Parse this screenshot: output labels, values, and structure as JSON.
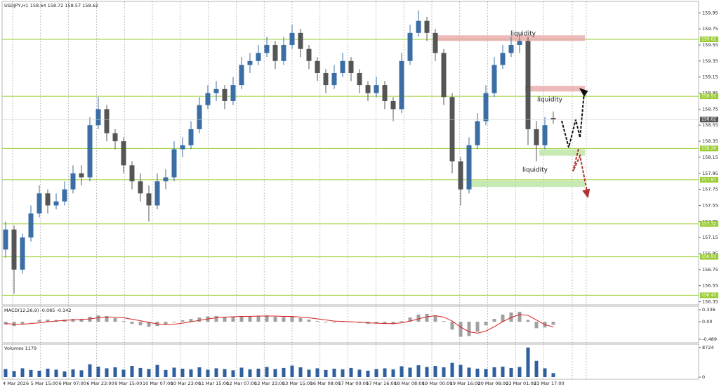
{
  "chart_data": {
    "type": "candlestick",
    "symbol": "USDJPY,H1",
    "x_labels": [
      "4 Mar 2026",
      "5 Mar 15:00",
      "6 Mar 07:00",
      "6 Mar 23:00",
      "9 Mar 15:00",
      "10 Mar 07:00",
      "10 Mar 23:00",
      "11 Mar 15:00",
      "12 Mar 07:00",
      "12 Mar 23:00",
      "13 Mar 15:00",
      "16 Mar 08:00",
      "17 Mar 00:00",
      "17 Mar 16:00",
      "18 Mar 08:00",
      "19 Mar 00:00",
      "19 Mar 16:00",
      "20 Mar 08:00",
      "23 Mar 01:00",
      "23 Mar 17:00"
    ],
    "open": [
      157.0,
      157.25,
      156.75,
      157.15,
      157.45,
      157.7,
      157.55,
      157.6,
      157.75,
      157.95,
      157.9,
      158.55,
      158.75,
      158.45,
      158.35,
      158.05,
      157.85,
      157.7,
      157.55,
      157.85,
      157.9,
      158.25,
      158.3,
      158.5,
      158.8,
      158.95,
      159.0,
      158.85,
      159.05,
      159.3,
      159.35,
      159.45,
      159.55,
      159.35,
      159.55,
      159.7,
      159.5,
      159.35,
      159.2,
      159.05,
      159.2,
      159.35,
      159.2,
      159.05,
      158.95,
      159.05,
      158.85,
      158.75,
      159.35,
      159.7,
      159.85,
      159.7,
      159.45,
      158.9,
      158.1,
      157.75,
      158.3,
      158.6,
      158.95,
      159.3,
      159.45,
      159.55,
      159.6,
      158.5,
      158.3,
      158.64
    ],
    "high": [
      157.35,
      157.3,
      157.2,
      157.55,
      157.8,
      157.75,
      157.7,
      157.85,
      158.05,
      158.05,
      158.65,
      158.9,
      158.8,
      158.5,
      158.4,
      158.1,
      157.95,
      157.8,
      157.95,
      158.0,
      158.35,
      158.4,
      158.6,
      158.9,
      159.05,
      159.1,
      159.05,
      159.15,
      159.4,
      159.45,
      159.55,
      159.65,
      159.6,
      159.65,
      159.8,
      159.75,
      159.55,
      159.4,
      159.25,
      159.3,
      159.45,
      159.4,
      159.25,
      159.1,
      159.15,
      159.1,
      158.9,
      159.45,
      159.8,
      159.98,
      159.9,
      159.75,
      159.5,
      158.95,
      158.15,
      158.4,
      158.7,
      159.05,
      159.4,
      159.55,
      159.65,
      159.68,
      159.65,
      158.6,
      158.65,
      158.72
    ],
    "low": [
      156.9,
      156.45,
      156.7,
      157.1,
      157.4,
      157.45,
      157.5,
      157.55,
      157.7,
      157.8,
      157.85,
      158.5,
      158.35,
      158.25,
      157.95,
      157.75,
      157.6,
      157.35,
      157.5,
      157.75,
      157.85,
      158.15,
      158.25,
      158.45,
      158.75,
      158.85,
      158.75,
      158.8,
      159.0,
      159.2,
      159.3,
      159.4,
      159.25,
      159.3,
      159.5,
      159.4,
      159.25,
      159.1,
      158.95,
      159.0,
      159.15,
      159.1,
      158.95,
      158.85,
      158.9,
      158.75,
      158.6,
      158.7,
      159.3,
      159.65,
      159.6,
      159.35,
      158.8,
      157.95,
      157.55,
      157.7,
      158.25,
      158.55,
      158.9,
      159.25,
      159.4,
      159.45,
      158.3,
      158.1,
      158.25,
      158.57
    ],
    "close": [
      157.25,
      156.75,
      157.15,
      157.45,
      157.7,
      157.55,
      157.6,
      157.75,
      157.95,
      157.9,
      158.55,
      158.75,
      158.45,
      158.35,
      158.05,
      157.85,
      157.7,
      157.55,
      157.85,
      157.9,
      158.25,
      158.3,
      158.5,
      158.8,
      158.95,
      159.0,
      158.85,
      159.05,
      159.3,
      159.35,
      159.45,
      159.55,
      159.35,
      159.55,
      159.7,
      159.5,
      159.35,
      159.2,
      159.05,
      159.2,
      159.35,
      159.2,
      159.05,
      158.95,
      159.05,
      158.85,
      158.75,
      159.35,
      159.7,
      159.85,
      159.7,
      159.45,
      158.9,
      158.1,
      157.75,
      158.3,
      158.6,
      158.95,
      159.3,
      159.45,
      159.55,
      159.6,
      158.5,
      158.3,
      158.55,
      158.62
    ],
    "bull_color": "#3a6ea5",
    "bear_color": "#555555",
    "ylim": [
      156.32,
      160.11
    ],
    "yticks": [
      159.95,
      159.75,
      159.55,
      159.35,
      159.15,
      158.95,
      158.75,
      158.55,
      158.35,
      158.15,
      157.95,
      157.75,
      157.55,
      157.35,
      157.15,
      156.95,
      156.75,
      156.55,
      156.35
    ],
    "levels": [
      159.62,
      158.91,
      158.26,
      157.87,
      157.32,
      156.91,
      156.43
    ],
    "level_color": "#9acd32",
    "zones": [
      {
        "color": "#e8a9a9",
        "from": 159.6,
        "to": 159.67
      },
      {
        "color": "#e8a9a9",
        "from": 158.97,
        "to": 159.04
      },
      {
        "color": "#b9e3a0",
        "from": 158.17,
        "to": 158.25
      },
      {
        "color": "#b9e3a0",
        "from": 157.78,
        "to": 157.86
      }
    ],
    "annotations": [
      "liquidity",
      "liquidity",
      "liquidity"
    ]
  },
  "macd": {
    "title": "MACD(12,26,9)",
    "ylim": [
      -0.587,
      0.434
    ],
    "yticks": [
      0.336,
      {
        "value": 0,
        "label": "0.00"
      },
      -0.489
    ],
    "histogram": [
      -0.08,
      -0.12,
      -0.06,
      0.0,
      0.05,
      0.06,
      0.05,
      0.06,
      0.08,
      0.08,
      0.14,
      0.18,
      0.16,
      0.1,
      0.02,
      -0.06,
      -0.1,
      -0.14,
      -0.12,
      -0.08,
      -0.02,
      0.04,
      0.08,
      0.12,
      0.15,
      0.16,
      0.14,
      0.14,
      0.16,
      0.16,
      0.17,
      0.18,
      0.14,
      0.13,
      0.14,
      0.1,
      0.06,
      0.02,
      -0.02,
      -0.02,
      0.0,
      0.0,
      -0.03,
      -0.06,
      -0.05,
      -0.06,
      -0.07,
      0.02,
      0.12,
      0.2,
      0.22,
      0.18,
      0.02,
      -0.22,
      -0.42,
      -0.4,
      -0.28,
      -0.1,
      0.08,
      0.2,
      0.26,
      0.28,
      0.05,
      -0.18,
      -0.16,
      -0.085
    ],
    "signal": [
      -0.05,
      -0.07,
      -0.07,
      -0.05,
      -0.03,
      0.0,
      0.02,
      0.04,
      0.05,
      0.06,
      0.08,
      0.11,
      0.13,
      0.13,
      0.11,
      0.07,
      0.03,
      -0.02,
      -0.06,
      -0.08,
      -0.07,
      -0.04,
      0.0,
      0.04,
      0.08,
      0.11,
      0.13,
      0.14,
      0.15,
      0.15,
      0.16,
      0.16,
      0.16,
      0.15,
      0.15,
      0.13,
      0.11,
      0.08,
      0.05,
      0.02,
      0.01,
      0.0,
      -0.01,
      -0.03,
      -0.04,
      -0.05,
      -0.05,
      -0.03,
      0.02,
      0.08,
      0.14,
      0.17,
      0.13,
      0.02,
      -0.15,
      -0.28,
      -0.32,
      -0.26,
      -0.14,
      0.0,
      0.12,
      0.2,
      0.18,
      0.05,
      -0.08,
      -0.142
    ],
    "hist_color": "#a0a0a0",
    "signal_color": "#d62020"
  },
  "volumes": {
    "title": "Volumes",
    "ylim": [
      0,
      9500
    ],
    "yticks": [
      8724,
      0
    ],
    "color": "#2f5f9e",
    "values": [
      2400,
      1800,
      2600,
      2100,
      1900,
      2500,
      2200,
      1700,
      2300,
      2000,
      3800,
      3100,
      2600,
      2900,
      2200,
      3300,
      2700,
      2400,
      3600,
      2100,
      2800,
      2500,
      2300,
      2900,
      2200,
      2600,
      2400,
      2000,
      2800,
      2300,
      2500,
      3000,
      2400,
      2700,
      3400,
      2900,
      2200,
      2600,
      2100,
      2500,
      2300,
      2700,
      2200,
      1900,
      2400,
      2600,
      2300,
      3200,
      2800,
      3500,
      3000,
      3300,
      2900,
      4200,
      3600,
      2800,
      2500,
      2400,
      2900,
      3100,
      2700,
      3000,
      8724,
      4800,
      2600,
      1179
    ]
  }
}
